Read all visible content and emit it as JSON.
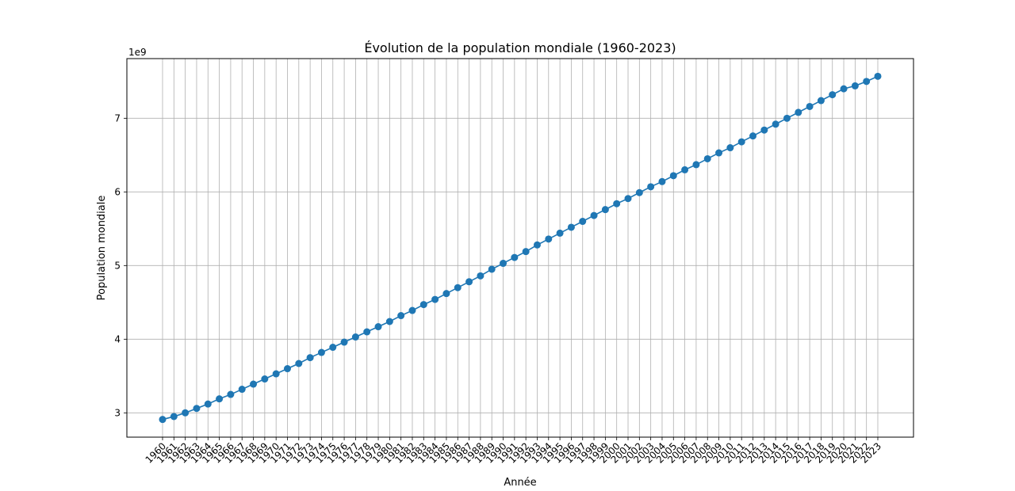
{
  "chart_data": {
    "type": "line",
    "title": "Évolution de la population mondiale (1960-2023)",
    "xlabel": "Année",
    "ylabel": "Population mondiale",
    "y_offset_label": "1e9",
    "y_ticks": [
      3,
      4,
      5,
      6,
      7
    ],
    "ylim": [
      2.67,
      7.81
    ],
    "grid": true,
    "marker": "circle",
    "colors": {
      "series": "#1f77b4",
      "grid": "#b0b0b0",
      "axes": "#000000"
    },
    "categories": [
      "1960",
      "1961",
      "1962",
      "1963",
      "1964",
      "1965",
      "1966",
      "1967",
      "1968",
      "1969",
      "1970",
      "1971",
      "1972",
      "1973",
      "1974",
      "1975",
      "1976",
      "1977",
      "1978",
      "1979",
      "1980",
      "1981",
      "1982",
      "1983",
      "1984",
      "1985",
      "1986",
      "1987",
      "1988",
      "1989",
      "1990",
      "1991",
      "1992",
      "1993",
      "1994",
      "1995",
      "1996",
      "1997",
      "1998",
      "1999",
      "2000",
      "2001",
      "2002",
      "2003",
      "2004",
      "2005",
      "2006",
      "2007",
      "2008",
      "2009",
      "2010",
      "2011",
      "2012",
      "2013",
      "2014",
      "2015",
      "2016",
      "2017",
      "2018",
      "2019",
      "2020",
      "2021",
      "2022",
      "2023"
    ],
    "series": [
      {
        "values": [
          2.91,
          2.95,
          3.0,
          3.06,
          3.12,
          3.19,
          3.25,
          3.32,
          3.39,
          3.46,
          3.53,
          3.6,
          3.67,
          3.75,
          3.82,
          3.89,
          3.96,
          4.03,
          4.1,
          4.17,
          4.24,
          4.32,
          4.39,
          4.47,
          4.54,
          4.62,
          4.7,
          4.78,
          4.86,
          4.95,
          5.03,
          5.11,
          5.19,
          5.28,
          5.36,
          5.44,
          5.52,
          5.6,
          5.68,
          5.76,
          5.84,
          5.91,
          5.99,
          6.07,
          6.14,
          6.22,
          6.3,
          6.37,
          6.45,
          6.53,
          6.6,
          6.68,
          6.76,
          6.84,
          6.92,
          7.0,
          7.08,
          7.16,
          7.24,
          7.32,
          7.4,
          7.44,
          7.5,
          7.57
        ]
      }
    ]
  }
}
